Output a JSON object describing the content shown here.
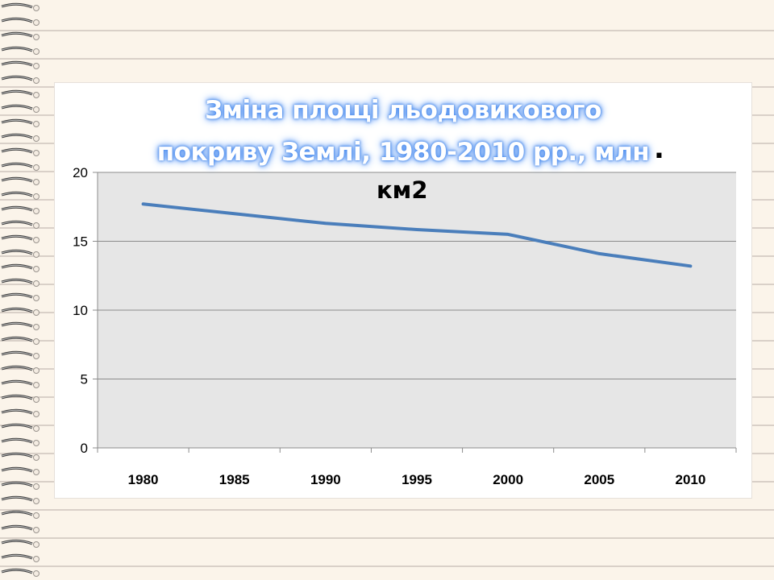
{
  "chart_data": {
    "type": "line",
    "title_lines": [
      "Зміна площі льодовикового",
      "покриву Землі, 1980-2010 рр., млн"
    ],
    "title_suffix": ".",
    "unit": "км2",
    "categories": [
      "1980",
      "1985",
      "1990",
      "1995",
      "2000",
      "2005",
      "2010"
    ],
    "series": [
      {
        "values": [
          17.7,
          17.0,
          16.3,
          15.85,
          15.5,
          14.1,
          13.2
        ]
      }
    ],
    "y_ticks": [
      "0",
      "5",
      "10",
      "15",
      "20"
    ],
    "ylim": [
      0,
      20
    ],
    "grid": "horizontal",
    "legend": "none",
    "colors": {
      "line": "#4a7ebb",
      "plot_area": "#e6e6e6",
      "grid": "#8c8c8c"
    }
  }
}
